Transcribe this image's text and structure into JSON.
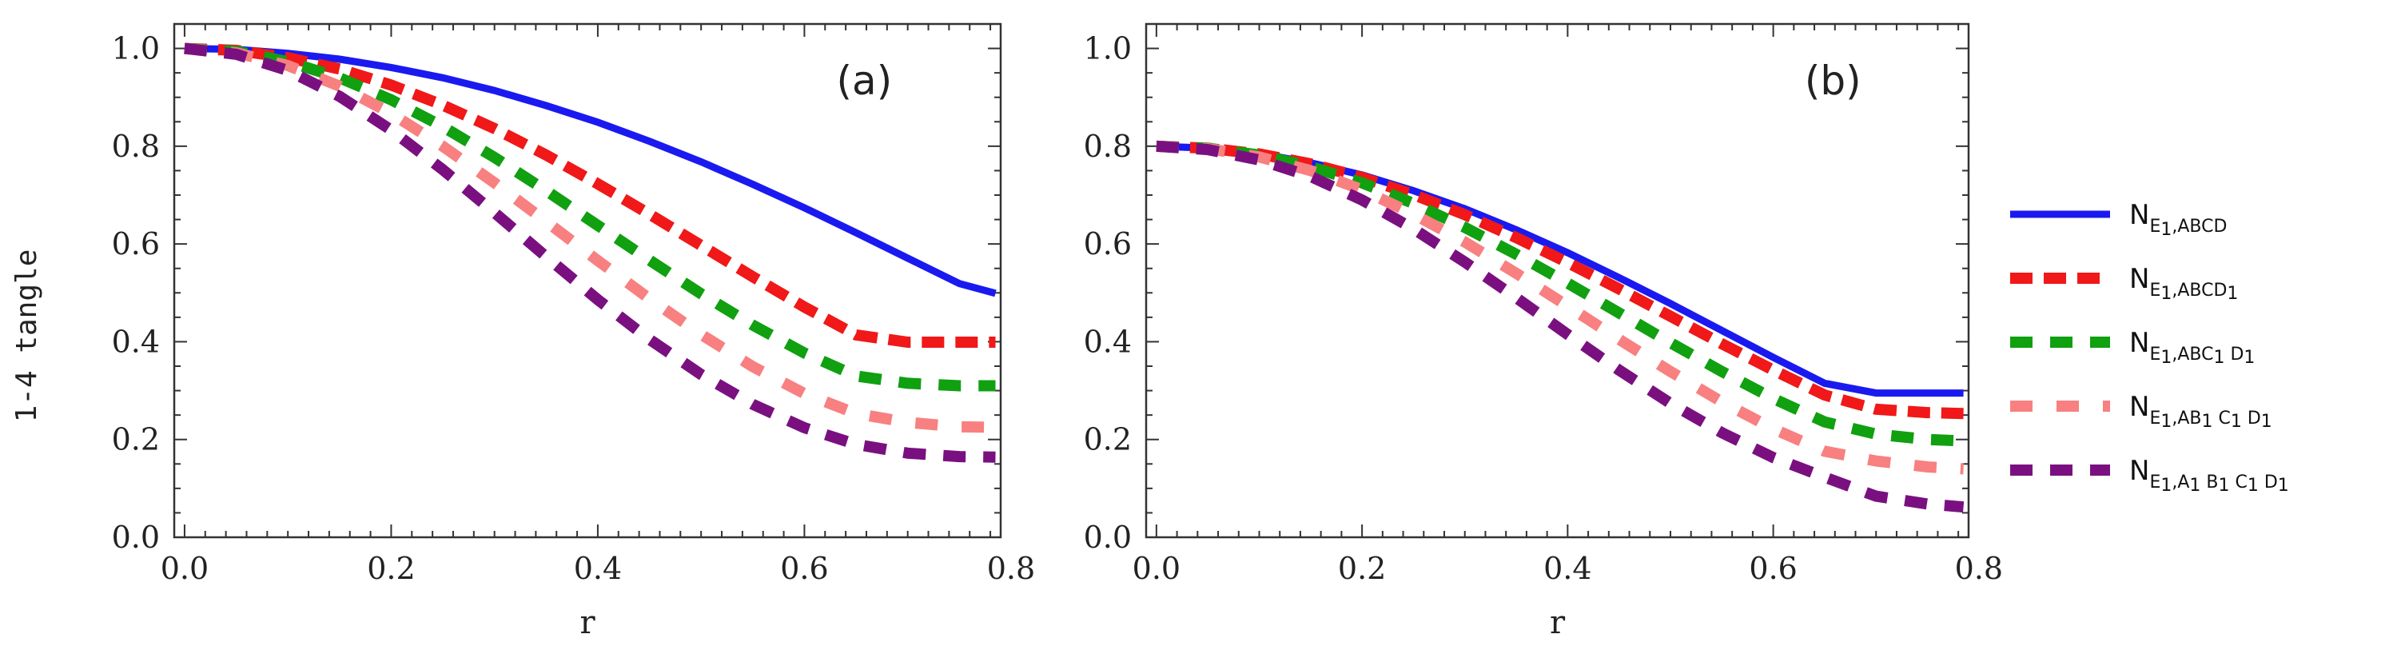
{
  "ylabel": "1-4 tangle",
  "legend": [
    {
      "name": "N",
      "sub": "E1,ABCD",
      "sub_parts": [
        [
          "E",
          ""
        ],
        [
          "1",
          "s"
        ],
        [
          ",ABCD",
          ""
        ]
      ],
      "color": "#1a1af0",
      "style": "solid"
    },
    {
      "name": "N",
      "sub": "E1,ABCD1",
      "sub_parts": [
        [
          "E",
          ""
        ],
        [
          "1",
          "s"
        ],
        [
          ",ABCD",
          ""
        ],
        [
          "1",
          "s"
        ]
      ],
      "color": "#f01818",
      "style": "dash"
    },
    {
      "name": "N",
      "sub": "E1,ABC1D1",
      "sub_parts": [
        [
          "E",
          ""
        ],
        [
          "1",
          "s"
        ],
        [
          ",ABC",
          ""
        ],
        [
          "1",
          "s"
        ],
        [
          " D",
          ""
        ],
        [
          "1",
          "s"
        ]
      ],
      "color": "#10a010",
      "style": "dash"
    },
    {
      "name": "N",
      "sub": "E1,AB1C1D1",
      "sub_parts": [
        [
          "E",
          ""
        ],
        [
          "1",
          "s"
        ],
        [
          ",AB",
          ""
        ],
        [
          "1",
          "s"
        ],
        [
          " C",
          ""
        ],
        [
          "1",
          "s"
        ],
        [
          " D",
          ""
        ],
        [
          "1",
          "s"
        ]
      ],
      "color": "#f88080",
      "style": "dash"
    },
    {
      "name": "N",
      "sub": "E1,A1B1C1D1",
      "sub_parts": [
        [
          "E",
          ""
        ],
        [
          "1",
          "s"
        ],
        [
          ",A",
          ""
        ],
        [
          "1",
          "s"
        ],
        [
          " B",
          ""
        ],
        [
          "1",
          "s"
        ],
        [
          " C",
          ""
        ],
        [
          "1",
          "s"
        ],
        [
          " D",
          ""
        ],
        [
          "1",
          "s"
        ]
      ],
      "color": "#7a1080",
      "style": "dash"
    }
  ],
  "chart_data": [
    {
      "type": "line",
      "panel_label": "(a)",
      "xlabel": "r",
      "ylabel": "1-4 tangle",
      "xlim": [
        -0.01,
        0.79
      ],
      "ylim": [
        0.0,
        1.05
      ],
      "xticks": [
        0.0,
        0.2,
        0.4,
        0.6,
        0.8
      ],
      "yticks": [
        0.0,
        0.2,
        0.4,
        0.6,
        0.8,
        1.0
      ],
      "x": [
        0.0,
        0.05,
        0.1,
        0.15,
        0.2,
        0.25,
        0.3,
        0.35,
        0.4,
        0.45,
        0.5,
        0.55,
        0.6,
        0.65,
        0.7,
        0.75,
        0.785
      ],
      "series": [
        {
          "name": "N_{E1,ABCD}",
          "values": [
            1.0,
            0.998,
            0.99,
            0.978,
            0.961,
            0.94,
            0.914,
            0.883,
            0.849,
            0.81,
            0.768,
            0.722,
            0.674,
            0.623,
            0.571,
            0.519,
            0.499
          ]
        },
        {
          "name": "N_{E1,ABCD1}",
          "values": [
            1.0,
            0.996,
            0.981,
            0.958,
            0.925,
            0.884,
            0.836,
            0.782,
            0.723,
            0.661,
            0.597,
            0.533,
            0.471,
            0.414,
            0.399,
            0.399,
            0.399
          ]
        },
        {
          "name": "N_{E1,ABC1D1}",
          "values": [
            1.0,
            0.994,
            0.973,
            0.94,
            0.895,
            0.84,
            0.777,
            0.709,
            0.638,
            0.567,
            0.498,
            0.434,
            0.377,
            0.33,
            0.315,
            0.31,
            0.31
          ]
        },
        {
          "name": "N_{E1,AB1C1D1}",
          "values": [
            1.0,
            0.991,
            0.965,
            0.923,
            0.867,
            0.8,
            0.725,
            0.646,
            0.566,
            0.488,
            0.415,
            0.349,
            0.294,
            0.253,
            0.235,
            0.226,
            0.225
          ]
        },
        {
          "name": "N_{E1,A1B1C1D1}",
          "values": [
            1.0,
            0.988,
            0.955,
            0.902,
            0.833,
            0.752,
            0.664,
            0.574,
            0.486,
            0.405,
            0.333,
            0.272,
            0.224,
            0.19,
            0.172,
            0.165,
            0.164
          ]
        }
      ]
    },
    {
      "type": "line",
      "panel_label": "(b)",
      "xlabel": "r",
      "ylabel": "",
      "xlim": [
        -0.01,
        0.79
      ],
      "ylim": [
        0.0,
        1.05
      ],
      "xticks": [
        0.0,
        0.2,
        0.4,
        0.6,
        0.8
      ],
      "yticks": [
        0.0,
        0.2,
        0.4,
        0.6,
        0.8,
        1.0
      ],
      "x": [
        0.0,
        0.05,
        0.1,
        0.15,
        0.2,
        0.25,
        0.3,
        0.35,
        0.4,
        0.45,
        0.5,
        0.55,
        0.6,
        0.65,
        0.7,
        0.75,
        0.785
      ],
      "series": [
        {
          "name": "N_{E1,ABCD}",
          "values": [
            0.8,
            0.796,
            0.785,
            0.766,
            0.741,
            0.709,
            0.672,
            0.629,
            0.582,
            0.531,
            0.478,
            0.423,
            0.368,
            0.315,
            0.295,
            0.295,
            0.295
          ]
        },
        {
          "name": "N_{E1,ABCD1}",
          "values": [
            0.8,
            0.796,
            0.784,
            0.764,
            0.736,
            0.701,
            0.66,
            0.613,
            0.562,
            0.508,
            0.452,
            0.396,
            0.342,
            0.291,
            0.262,
            0.255,
            0.253
          ]
        },
        {
          "name": "N_{E1,ABC1D1}",
          "values": [
            0.8,
            0.796,
            0.782,
            0.758,
            0.725,
            0.683,
            0.634,
            0.579,
            0.52,
            0.459,
            0.398,
            0.339,
            0.284,
            0.236,
            0.211,
            0.2,
            0.197
          ]
        },
        {
          "name": "N_{E1,AB1C1D1}",
          "values": [
            0.8,
            0.795,
            0.778,
            0.75,
            0.711,
            0.661,
            0.604,
            0.54,
            0.473,
            0.405,
            0.339,
            0.277,
            0.222,
            0.176,
            0.156,
            0.144,
            0.14
          ]
        },
        {
          "name": "N_{E1,A1B1C1D1}",
          "values": [
            0.8,
            0.793,
            0.772,
            0.738,
            0.69,
            0.631,
            0.563,
            0.49,
            0.415,
            0.342,
            0.274,
            0.214,
            0.163,
            0.123,
            0.084,
            0.068,
            0.062
          ]
        }
      ]
    }
  ]
}
